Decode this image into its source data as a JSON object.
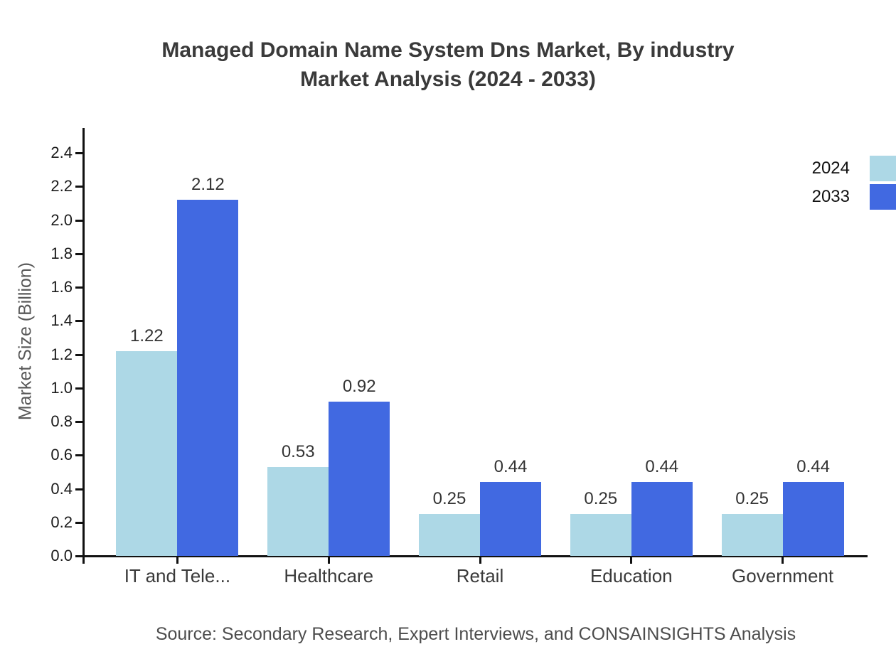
{
  "source": "Source: Secondary Research, Expert Interviews, and CONSAINSIGHTS Analysis",
  "chart_data": {
    "type": "bar",
    "title": "Managed Domain Name System Dns Market, By industry\nMarket Analysis (2024 - 2033)",
    "categories": [
      "IT and Tele...",
      "Healthcare",
      "Retail",
      "Education",
      "Government"
    ],
    "series": [
      {
        "name": "2024",
        "color": "#ADD8E6",
        "values": [
          1.22,
          0.53,
          0.25,
          0.25,
          0.25
        ]
      },
      {
        "name": "2033",
        "color": "#4169E1",
        "values": [
          2.12,
          0.92,
          0.44,
          0.44,
          0.44
        ]
      }
    ],
    "xlabel": "",
    "ylabel": "Market Size (Billion)",
    "ylim": [
      0,
      2.54
    ],
    "yticks": [
      0.0,
      0.2,
      0.4,
      0.6,
      0.8,
      1.0,
      1.2,
      1.4,
      1.6,
      1.8,
      2.0,
      2.2,
      2.4
    ],
    "grid": false,
    "legend_position": "upper-right",
    "value_labels": true
  }
}
